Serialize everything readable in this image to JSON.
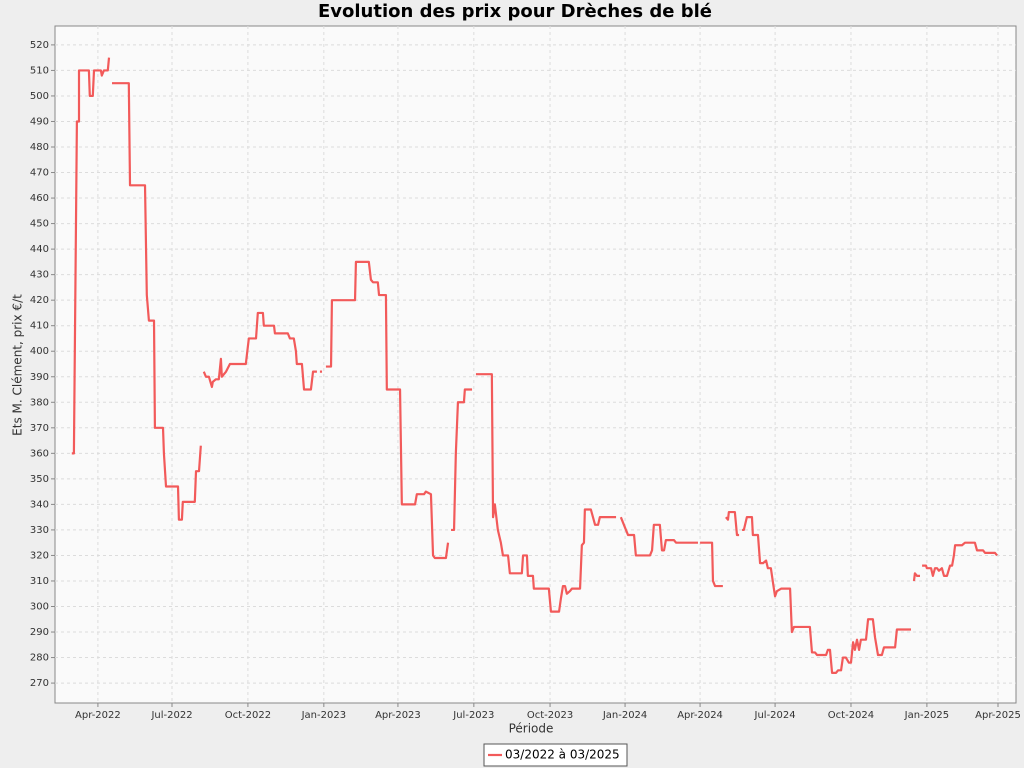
{
  "chart_data": {
    "type": "line",
    "title": "Evolution des prix pour Drèches de blé",
    "x_label": "Période",
    "y_label": "Ets M. Clément, prix €/t",
    "xlim": [
      2022.107,
      2025.31
    ],
    "ylim": [
      262.2,
      527.4
    ],
    "yticks": [
      270,
      280,
      290,
      300,
      310,
      320,
      330,
      340,
      350,
      360,
      370,
      380,
      390,
      400,
      410,
      420,
      430,
      440,
      450,
      460,
      470,
      480,
      490,
      500,
      510,
      520
    ],
    "xticks": [
      {
        "value": 2022.25,
        "label": "Apr-2022"
      },
      {
        "value": 2022.497,
        "label": "Jul-2022"
      },
      {
        "value": 2022.75,
        "label": "Oct-2022"
      },
      {
        "value": 2023.003,
        "label": "Jan-2023"
      },
      {
        "value": 2023.25,
        "label": "Apr-2023"
      },
      {
        "value": 2023.503,
        "label": "Jul-2023"
      },
      {
        "value": 2023.757,
        "label": "Oct-2023"
      },
      {
        "value": 2024.007,
        "label": "Jan-2024"
      },
      {
        "value": 2024.257,
        "label": "Apr-2024"
      },
      {
        "value": 2024.507,
        "label": "Jul-2024"
      },
      {
        "value": 2024.76,
        "label": "Oct-2024"
      },
      {
        "value": 2025.013,
        "label": "Jan-2025"
      },
      {
        "value": 2025.25,
        "label": "Apr-2025"
      }
    ],
    "grid": true,
    "legend": "bottom",
    "x": [
      2022.163,
      2022.17,
      2022.18,
      2022.187,
      2022.187,
      2022.22,
      2022.223,
      2022.233,
      2022.237,
      2022.26,
      2022.263,
      2022.27,
      2022.283,
      2022.287,
      null,
      2022.297,
      2022.353,
      2022.357,
      2022.407,
      2022.413,
      2022.42,
      2022.437,
      2022.44,
      2022.467,
      2022.47,
      2022.477,
      2022.517,
      2022.52,
      2022.53,
      2022.533,
      2022.573,
      2022.577,
      2022.587,
      2022.593,
      null,
      2022.603,
      2022.61,
      2022.62,
      2022.63,
      2022.633,
      2022.643,
      2022.653,
      2022.66,
      2022.663,
      2022.677,
      2022.69,
      2022.743,
      2022.753,
      2022.777,
      2022.783,
      2022.8,
      2022.803,
      2022.837,
      2022.84,
      2022.883,
      2022.89,
      2022.903,
      2022.91,
      2022.913,
      2022.93,
      2022.937,
      2022.96,
      2022.967,
      2022.98,
      null,
      2022.99,
      2022.997,
      null,
      2023.01,
      2023.027,
      2023.03,
      2023.107,
      2023.11,
      2023.153,
      2023.16,
      2023.167,
      2023.183,
      2023.187,
      2023.21,
      2023.213,
      2023.257,
      2023.263,
      2023.307,
      2023.313,
      2023.337,
      2023.343,
      2023.36,
      2023.367,
      2023.373,
      2023.403,
      2023.41,
      2023.417,
      null,
      2023.427,
      2023.437,
      2023.443,
      2023.45,
      2023.47,
      2023.473,
      2023.497,
      null,
      2023.51,
      2023.563,
      2023.567,
      2023.573,
      2023.583,
      2023.593,
      2023.6,
      2023.617,
      2023.623,
      2023.663,
      2023.667,
      2023.68,
      2023.683,
      2023.7,
      2023.703,
      2023.753,
      2023.76,
      2023.787,
      2023.793,
      2023.8,
      2023.807,
      2023.813,
      2023.823,
      2023.83,
      2023.857,
      2023.863,
      2023.87,
      2023.873,
      2023.893,
      2023.907,
      2023.917,
      2023.923,
      2023.977,
      null,
      2023.993,
      2024.01,
      2024.017,
      2024.037,
      2024.043,
      2024.09,
      2024.097,
      2024.103,
      2024.123,
      2024.13,
      2024.137,
      2024.143,
      2024.17,
      2024.177,
      2024.25,
      null,
      2024.257,
      2024.297,
      2024.3,
      2024.307,
      2024.333,
      null,
      2024.343,
      2024.35,
      2024.353,
      2024.373,
      2024.38,
      2024.387,
      null,
      2024.397,
      2024.403,
      2024.413,
      2024.43,
      2024.433,
      2024.45,
      2024.457,
      2024.467,
      2024.477,
      2024.483,
      2024.493,
      2024.503,
      2024.507,
      2024.513,
      2024.527,
      2024.557,
      2024.563,
      2024.57,
      2024.623,
      2024.63,
      2024.64,
      2024.647,
      2024.677,
      2024.683,
      2024.69,
      2024.697,
      2024.71,
      2024.717,
      2024.727,
      2024.733,
      2024.743,
      2024.753,
      2024.76,
      2024.767,
      2024.773,
      2024.78,
      2024.787,
      2024.793,
      2024.81,
      2024.817,
      2024.833,
      2024.84,
      2024.85,
      2024.863,
      2024.87,
      2024.907,
      2024.913,
      2024.96,
      null,
      2024.97,
      2024.973,
      2024.98,
      2024.99,
      null,
      2024.997,
      2025.01,
      2025.013,
      2025.027,
      2025.033,
      2025.04,
      2025.047,
      2025.053,
      2025.063,
      2025.07,
      2025.08,
      2025.09,
      2025.097,
      2025.103,
      2025.107,
      2025.13,
      2025.14,
      2025.173,
      2025.18,
      2025.2,
      2025.207,
      2025.24,
      2025.247
    ],
    "series": [
      {
        "name": "03/2022 à 03/2025",
        "color": "#f25a5a",
        "values": [
          360,
          360,
          490,
          490,
          510,
          510,
          500,
          500,
          510,
          510,
          508,
          510,
          510,
          515,
          null,
          505,
          505,
          465,
          465,
          422,
          412,
          412,
          370,
          370,
          360,
          347,
          347,
          334,
          334,
          341,
          341,
          353,
          353,
          363,
          null,
          392,
          390,
          390,
          386,
          388,
          389,
          389,
          397,
          390,
          392,
          395,
          395,
          405,
          405,
          415,
          415,
          410,
          410,
          407,
          407,
          405,
          405,
          400,
          395,
          395,
          385,
          385,
          392,
          392,
          null,
          392,
          392,
          null,
          394,
          394,
          420,
          420,
          435,
          435,
          428,
          427,
          427,
          422,
          422,
          385,
          385,
          340,
          340,
          344,
          344,
          345,
          344,
          320,
          319,
          319,
          319,
          325,
          null,
          330,
          330,
          360,
          380,
          380,
          385,
          385,
          null,
          391,
          391,
          335,
          340,
          330,
          325,
          320,
          320,
          313,
          313,
          320,
          320,
          312,
          312,
          307,
          307,
          298,
          298,
          303,
          308,
          308,
          305,
          306,
          307,
          307,
          324,
          325,
          338,
          338,
          332,
          332,
          335,
          335,
          null,
          335,
          330,
          328,
          328,
          320,
          320,
          322,
          332,
          332,
          322,
          322,
          326,
          326,
          325,
          325,
          null,
          325,
          325,
          310,
          308,
          308,
          null,
          335,
          334,
          337,
          337,
          328,
          328,
          null,
          330,
          330,
          335,
          335,
          328,
          328,
          317,
          317,
          318,
          315,
          315,
          307,
          304,
          306,
          307,
          307,
          290,
          292,
          292,
          282,
          282,
          281,
          281,
          283,
          283,
          274,
          274,
          275,
          275,
          280,
          280,
          278,
          278,
          286,
          283,
          287,
          283,
          287,
          287,
          295,
          295,
          288,
          281,
          281,
          284,
          284,
          291,
          291,
          null,
          310,
          313,
          312,
          312,
          null,
          316,
          316,
          315,
          315,
          312,
          315,
          315,
          314,
          315,
          312,
          312,
          316,
          316,
          320,
          324,
          324,
          325,
          325,
          322,
          322,
          321,
          321,
          320
        ]
      }
    ]
  }
}
